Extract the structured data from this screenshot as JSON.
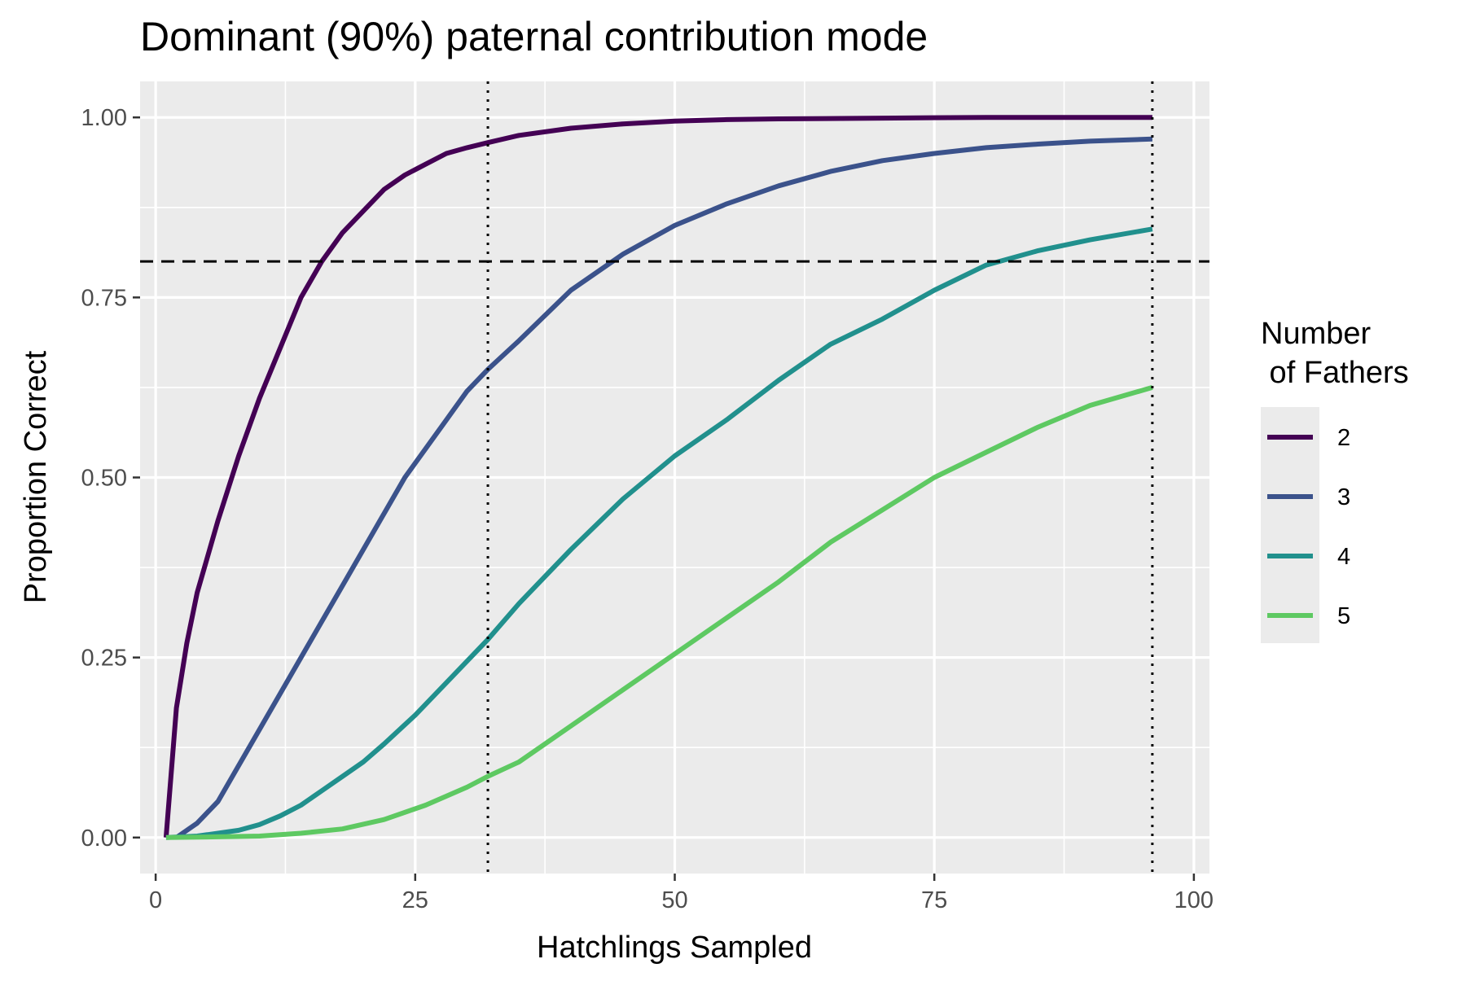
{
  "chart_data": {
    "type": "line",
    "title": "Dominant (90%) paternal contribution mode",
    "xlabel": "Hatchlings Sampled",
    "ylabel": "Proportion Correct",
    "xlim": [
      -1.5,
      101.5
    ],
    "ylim": [
      -0.05,
      1.05
    ],
    "x_ticks": [
      0,
      25,
      50,
      75,
      100
    ],
    "x_tick_labels": [
      "0",
      "25",
      "50",
      "75",
      "100"
    ],
    "y_ticks": [
      0,
      0.25,
      0.5,
      0.75,
      1.0
    ],
    "y_tick_labels": [
      "0.00",
      "0.25",
      "0.50",
      "0.75",
      "1.00"
    ],
    "grid": true,
    "legend": {
      "title_line1": "Number",
      "title_line2": " of Fathers",
      "position": "right"
    },
    "reference_lines": [
      {
        "orientation": "horizontal",
        "value": 0.8,
        "style": "dashed"
      },
      {
        "orientation": "vertical",
        "value": 32,
        "style": "dotted"
      },
      {
        "orientation": "vertical",
        "value": 96,
        "style": "dotted"
      }
    ],
    "series": [
      {
        "name": "2",
        "color": "#440154",
        "x": [
          1,
          2,
          3,
          4,
          6,
          8,
          10,
          12,
          14,
          16,
          18,
          20,
          22,
          24,
          26,
          28,
          30,
          32,
          35,
          40,
          45,
          50,
          55,
          60,
          70,
          80,
          96
        ],
        "y": [
          0.0,
          0.18,
          0.27,
          0.34,
          0.44,
          0.53,
          0.61,
          0.68,
          0.75,
          0.8,
          0.84,
          0.87,
          0.9,
          0.92,
          0.935,
          0.95,
          0.958,
          0.965,
          0.975,
          0.985,
          0.991,
          0.995,
          0.997,
          0.998,
          0.999,
          1.0,
          1.0
        ]
      },
      {
        "name": "3",
        "color": "#3b528b",
        "x": [
          2,
          4,
          6,
          8,
          10,
          12,
          14,
          16,
          18,
          20,
          22,
          24,
          26,
          28,
          30,
          32,
          35,
          40,
          45,
          50,
          55,
          60,
          65,
          70,
          75,
          80,
          85,
          90,
          96
        ],
        "y": [
          0.0,
          0.02,
          0.05,
          0.1,
          0.15,
          0.2,
          0.25,
          0.3,
          0.35,
          0.4,
          0.45,
          0.5,
          0.54,
          0.58,
          0.62,
          0.65,
          0.69,
          0.76,
          0.81,
          0.85,
          0.88,
          0.905,
          0.925,
          0.94,
          0.95,
          0.958,
          0.963,
          0.967,
          0.97
        ]
      },
      {
        "name": "4",
        "color": "#21908d",
        "x": [
          1,
          4,
          8,
          10,
          12,
          14,
          16,
          18,
          20,
          22,
          25,
          28,
          30,
          32,
          35,
          38,
          40,
          45,
          50,
          55,
          60,
          65,
          70,
          75,
          80,
          85,
          90,
          96
        ],
        "y": [
          0.0,
          0.002,
          0.01,
          0.018,
          0.03,
          0.045,
          0.065,
          0.085,
          0.105,
          0.13,
          0.17,
          0.215,
          0.245,
          0.275,
          0.325,
          0.37,
          0.4,
          0.47,
          0.53,
          0.58,
          0.635,
          0.685,
          0.72,
          0.76,
          0.795,
          0.815,
          0.83,
          0.845
        ]
      },
      {
        "name": "5",
        "color": "#5ec962",
        "x": [
          1,
          6,
          10,
          14,
          18,
          22,
          26,
          30,
          32,
          35,
          40,
          45,
          50,
          55,
          60,
          65,
          70,
          75,
          80,
          85,
          90,
          96
        ],
        "y": [
          0.0,
          0.001,
          0.002,
          0.006,
          0.012,
          0.025,
          0.045,
          0.07,
          0.085,
          0.105,
          0.155,
          0.205,
          0.255,
          0.305,
          0.355,
          0.41,
          0.455,
          0.5,
          0.535,
          0.57,
          0.6,
          0.625
        ]
      }
    ]
  }
}
